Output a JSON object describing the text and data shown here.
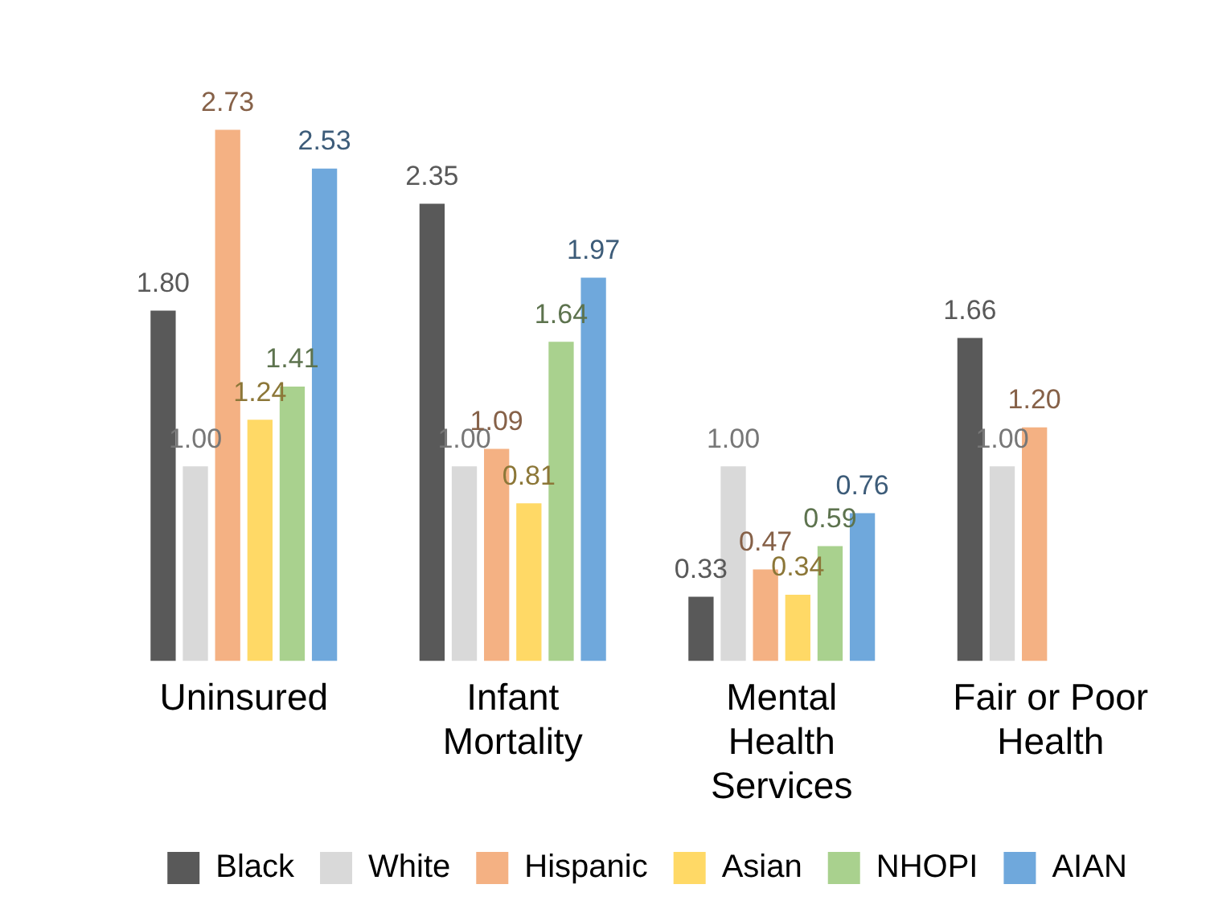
{
  "chart_data": {
    "type": "bar",
    "categories": [
      "Uninsured",
      "Infant Mortality",
      "Mental Health Services",
      "Fair or Poor Health"
    ],
    "series": [
      {
        "name": "Black",
        "color": "#595959",
        "values": [
          1.8,
          2.35,
          0.33,
          1.66
        ],
        "value_labels": [
          "1.80",
          "2.35",
          "0.33",
          "1.66"
        ]
      },
      {
        "name": "White",
        "color": "#d9d9d9",
        "values": [
          1.0,
          1.0,
          1.0,
          1.0
        ],
        "value_labels": [
          "1.00",
          "1.00",
          "1.00",
          "1.00"
        ]
      },
      {
        "name": "Hispanic",
        "color": "#f4b183",
        "values": [
          2.73,
          1.09,
          0.47,
          1.2
        ],
        "value_labels": [
          "2.73",
          "1.09",
          "0.47",
          "1.20"
        ]
      },
      {
        "name": "Asian",
        "color": "#ffd966",
        "values": [
          1.24,
          0.81,
          0.34,
          null
        ],
        "value_labels": [
          "1.24",
          "0.81",
          "0.34",
          null
        ]
      },
      {
        "name": "NHOPI",
        "color": "#a9d18e",
        "values": [
          1.41,
          1.64,
          0.59,
          null
        ],
        "value_labels": [
          "1.41",
          "1.64",
          "0.59",
          null
        ]
      },
      {
        "name": "AIAN",
        "color": "#6fa8dc",
        "values": [
          2.53,
          1.97,
          0.76,
          null
        ],
        "value_labels": [
          "2.53",
          "1.97",
          "0.76",
          null
        ]
      }
    ],
    "tick_labels": "x",
    "grid": false,
    "legend": "bottom"
  }
}
